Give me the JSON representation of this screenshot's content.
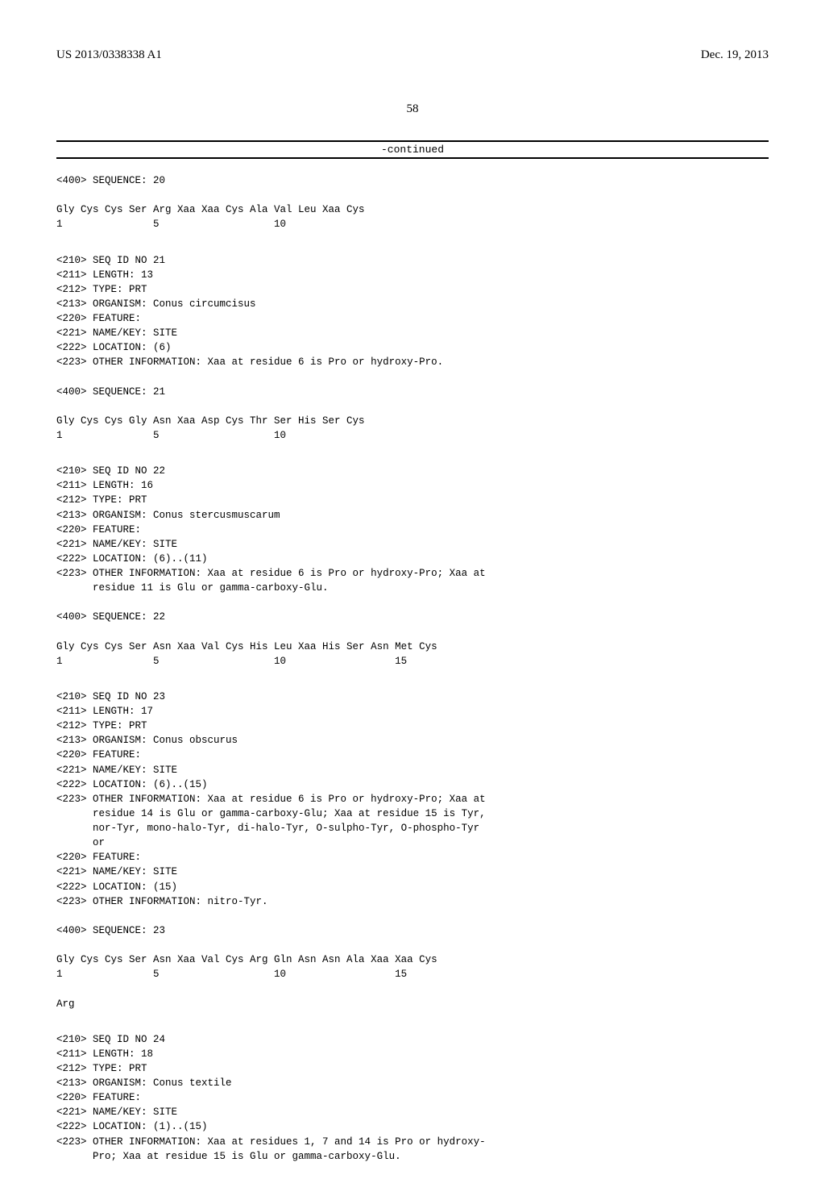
{
  "header": {
    "pub_number": "US 2013/0338338 A1",
    "pub_date": "Dec. 19, 2013"
  },
  "page_number": "58",
  "continued_label": "-continued",
  "blocks": [
    {
      "lines": [
        "<400> SEQUENCE: 20",
        "",
        "Gly Cys Cys Ser Arg Xaa Xaa Cys Ala Val Leu Xaa Cys",
        "1               5                   10"
      ]
    },
    {
      "lines": [
        "<210> SEQ ID NO 21",
        "<211> LENGTH: 13",
        "<212> TYPE: PRT",
        "<213> ORGANISM: Conus circumcisus",
        "<220> FEATURE:",
        "<221> NAME/KEY: SITE",
        "<222> LOCATION: (6)",
        "<223> OTHER INFORMATION: Xaa at residue 6 is Pro or hydroxy-Pro.",
        "",
        "<400> SEQUENCE: 21",
        "",
        "Gly Cys Cys Gly Asn Xaa Asp Cys Thr Ser His Ser Cys",
        "1               5                   10"
      ]
    },
    {
      "lines": [
        "<210> SEQ ID NO 22",
        "<211> LENGTH: 16",
        "<212> TYPE: PRT",
        "<213> ORGANISM: Conus stercusmuscarum",
        "<220> FEATURE:",
        "<221> NAME/KEY: SITE",
        "<222> LOCATION: (6)..(11)",
        "<223> OTHER INFORMATION: Xaa at residue 6 is Pro or hydroxy-Pro; Xaa at",
        "      residue 11 is Glu or gamma-carboxy-Glu.",
        "",
        "<400> SEQUENCE: 22",
        "",
        "Gly Cys Cys Ser Asn Xaa Val Cys His Leu Xaa His Ser Asn Met Cys",
        "1               5                   10                  15"
      ]
    },
    {
      "lines": [
        "<210> SEQ ID NO 23",
        "<211> LENGTH: 17",
        "<212> TYPE: PRT",
        "<213> ORGANISM: Conus obscurus",
        "<220> FEATURE:",
        "<221> NAME/KEY: SITE",
        "<222> LOCATION: (6)..(15)",
        "<223> OTHER INFORMATION: Xaa at residue 6 is Pro or hydroxy-Pro; Xaa at",
        "      residue 14 is Glu or gamma-carboxy-Glu; Xaa at residue 15 is Tyr,",
        "      nor-Tyr, mono-halo-Tyr, di-halo-Tyr, O-sulpho-Tyr, O-phospho-Tyr",
        "      or",
        "<220> FEATURE:",
        "<221> NAME/KEY: SITE",
        "<222> LOCATION: (15)",
        "<223> OTHER INFORMATION: nitro-Tyr.",
        "",
        "<400> SEQUENCE: 23",
        "",
        "Gly Cys Cys Ser Asn Xaa Val Cys Arg Gln Asn Asn Ala Xaa Xaa Cys",
        "1               5                   10                  15",
        "",
        "Arg"
      ]
    },
    {
      "lines": [
        "<210> SEQ ID NO 24",
        "<211> LENGTH: 18",
        "<212> TYPE: PRT",
        "<213> ORGANISM: Conus textile",
        "<220> FEATURE:",
        "<221> NAME/KEY: SITE",
        "<222> LOCATION: (1)..(15)",
        "<223> OTHER INFORMATION: Xaa at residues 1, 7 and 14 is Pro or hydroxy-",
        "      Pro; Xaa at residue 15 is Glu or gamma-carboxy-Glu."
      ]
    }
  ]
}
